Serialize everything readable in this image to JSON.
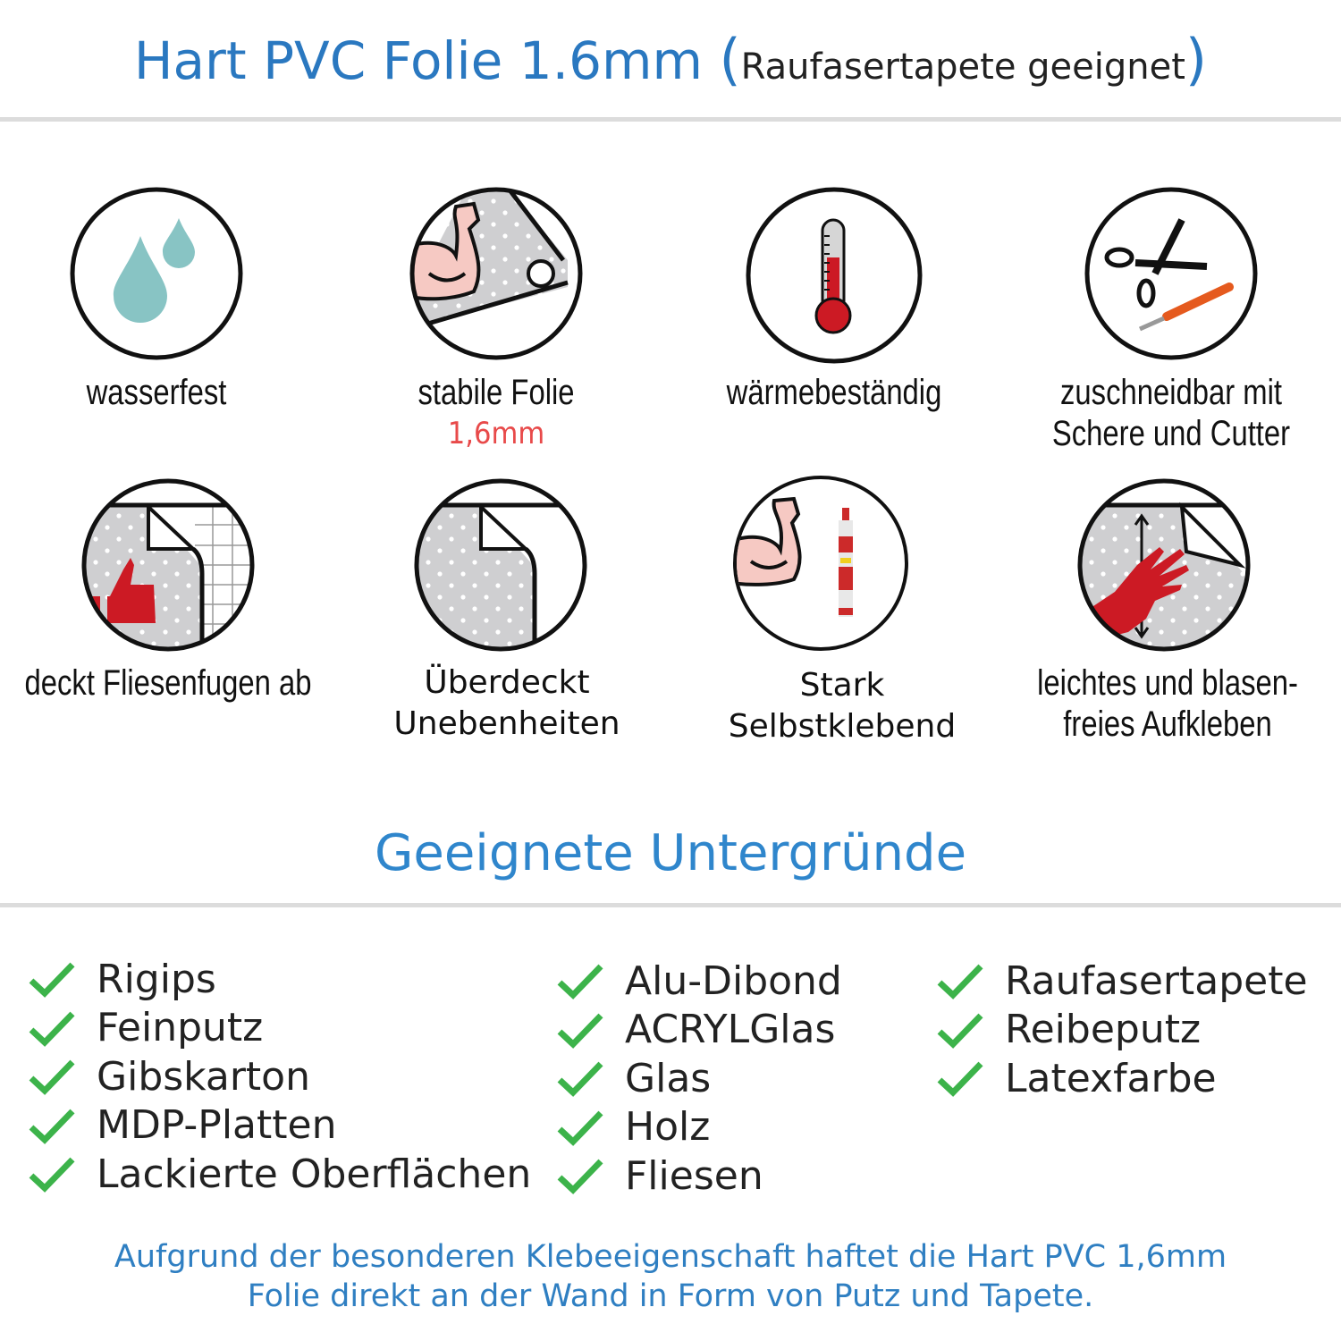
{
  "header": {
    "title": "Hart PVC Folie 1.6mm",
    "subtitle": "Raufasertapete geeignet",
    "paren_open": "(",
    "paren_close": ")"
  },
  "features": [
    {
      "icon": "water-drops-icon",
      "label": "wasserfest"
    },
    {
      "icon": "muscle-roll-icon",
      "label": "stabile Folie",
      "highlight": "1,6mm"
    },
    {
      "icon": "thermometer-icon",
      "label": "wärmebeständig"
    },
    {
      "icon": "scissors-cutter-icon",
      "label": "zuschneidbar mit",
      "label2": "Schere und Cutter"
    },
    {
      "icon": "thumbs-up-tiles-icon",
      "label": "deckt Fliesenfugen ab"
    },
    {
      "icon": "peeling-foil-icon",
      "label": "Überdeckt",
      "label2": "Unebenheiten"
    },
    {
      "icon": "muscle-glue-icon",
      "label": "Stark",
      "label2": "Selbstklebend"
    },
    {
      "icon": "hand-smoothing-icon",
      "label": "leichtes und blasen-",
      "label2": "freies Aufkleben"
    }
  ],
  "surfaces": {
    "title": "Geeignete Untergründe",
    "columns": [
      [
        "Rigips",
        "Feinputz",
        "Gibskarton",
        "MDP-Platten",
        "Lackierte Oberflächen"
      ],
      [
        "Alu-Dibond",
        "ACRYLGlas",
        "Glas",
        "Holz",
        "Fliesen"
      ],
      [
        "Raufasertapete",
        "Reibeputz",
        "Latexfarbe"
      ]
    ]
  },
  "footer": {
    "line1": "Aufgrund der besonderen Klebeeigenschaft haftet die Hart PVC 1,6mm",
    "line2": "Folie direkt an der Wand in Form von Putz und Tapete."
  },
  "colors": {
    "title": "#2a78c0",
    "check": "#3cb34a",
    "highlight": "#e84a4a",
    "accent_red": "#cc1a24",
    "drop": "#88c4c4"
  }
}
